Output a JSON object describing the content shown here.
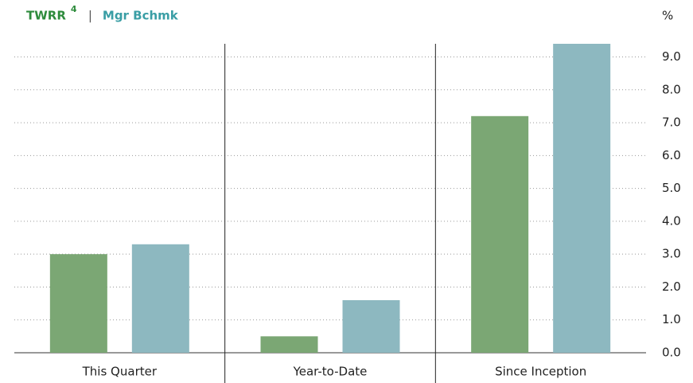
{
  "chart_data": {
    "type": "bar",
    "y_unit": "%",
    "legend_note": "4",
    "legend_separator": "|",
    "categories": [
      "This Quarter",
      "Year-to-Date",
      "Since Inception"
    ],
    "series": [
      {
        "name": "TWRR",
        "color": "#7ba774",
        "legend_color": "#2e8b3c",
        "values": [
          3.0,
          0.5,
          7.2
        ]
      },
      {
        "name": "Mgr Bchmk",
        "color": "#8db8c0",
        "legend_color": "#3a9ea5",
        "values": [
          3.3,
          1.6,
          9.4
        ]
      }
    ],
    "ylim": [
      0,
      9.4
    ],
    "yticks": [
      {
        "value": 0,
        "label": "0.0"
      },
      {
        "value": 1,
        "label": "1.0"
      },
      {
        "value": 2,
        "label": "2.0"
      },
      {
        "value": 3,
        "label": "3.0"
      },
      {
        "value": 4,
        "label": "4.0"
      },
      {
        "value": 5,
        "label": "5.0"
      },
      {
        "value": 6,
        "label": "6.0"
      },
      {
        "value": 7,
        "label": "7.0"
      },
      {
        "value": 8,
        "label": "8.0"
      },
      {
        "value": 9,
        "label": "9.0"
      }
    ],
    "grid": true
  }
}
